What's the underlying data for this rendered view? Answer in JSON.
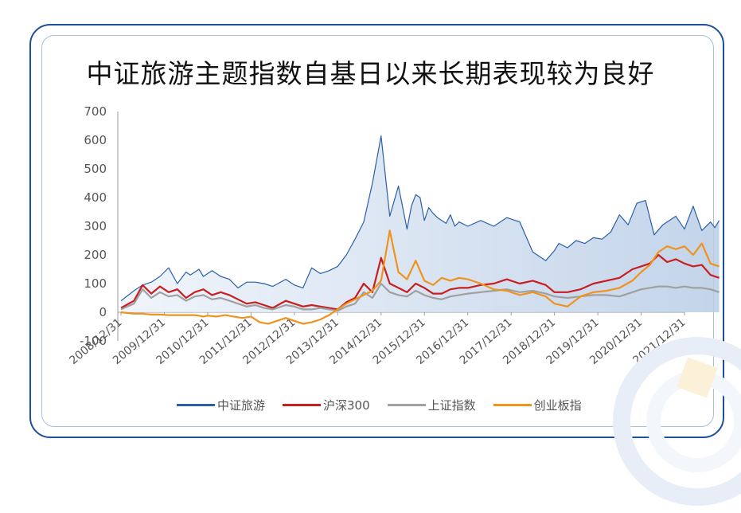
{
  "title": "中证旅游主题指数自基日以来长期表现较为良好",
  "legend": [
    "中证旅游",
    "沪深300",
    "上证指数",
    "创业板指"
  ],
  "chart_data": {
    "type": "line",
    "title": "中证旅游主题指数自基日以来长期表现较为良好",
    "xlabel": "",
    "ylabel": "",
    "ylim": [
      -100,
      700
    ],
    "yticks": [
      -100,
      0,
      100,
      200,
      300,
      400,
      500,
      600,
      700
    ],
    "categories": [
      "2008/12/31",
      "2009/12/31",
      "2010/12/31",
      "2011/12/31",
      "2012/12/31",
      "2013/12/31",
      "2014/12/31",
      "2015/12/31",
      "2016/12/31",
      "2017/12/31",
      "2018/12/31",
      "2019/12/31",
      "2020/12/31",
      "2021/12/31"
    ],
    "grid": false,
    "legend_position": "bottom",
    "series": [
      {
        "name": "中证旅游",
        "color": "#2a5fa8",
        "fill": true,
        "x": [
          0,
          0.3,
          0.5,
          0.7,
          0.9,
          1.1,
          1.3,
          1.5,
          1.6,
          1.8,
          1.9,
          2.1,
          2.3,
          2.5,
          2.7,
          2.9,
          3.1,
          3.3,
          3.5,
          3.8,
          4.0,
          4.2,
          4.4,
          4.6,
          4.8,
          5.0,
          5.2,
          5.4,
          5.6,
          5.8,
          6.0,
          6.2,
          6.4,
          6.6,
          6.7,
          6.8,
          6.9,
          7.0,
          7.1,
          7.2,
          7.3,
          7.4,
          7.5,
          7.6,
          7.7,
          7.8,
          8.0,
          8.3,
          8.6,
          8.9,
          9.2,
          9.5,
          9.8,
          10.0,
          10.1,
          10.3,
          10.5,
          10.7,
          10.9,
          11.1,
          11.3,
          11.5,
          11.7,
          11.9,
          12.1,
          12.3,
          12.5,
          12.6,
          12.8,
          13.0,
          13.2,
          13.4,
          13.6,
          13.7,
          13.8
        ],
        "values": [
          40,
          75,
          95,
          105,
          125,
          155,
          100,
          140,
          130,
          150,
          125,
          145,
          125,
          115,
          85,
          105,
          105,
          100,
          90,
          115,
          95,
          85,
          155,
          135,
          145,
          160,
          200,
          255,
          315,
          450,
          615,
          335,
          440,
          290,
          370,
          410,
          400,
          320,
          365,
          345,
          330,
          320,
          310,
          340,
          300,
          315,
          300,
          320,
          300,
          330,
          315,
          210,
          180,
          215,
          240,
          225,
          250,
          240,
          260,
          255,
          280,
          340,
          305,
          380,
          390,
          270,
          305,
          315,
          335,
          290,
          370,
          285,
          315,
          295,
          320
        ]
      },
      {
        "name": "沪深300",
        "color": "#c81e1e",
        "fill": false,
        "x": [
          0,
          0.3,
          0.5,
          0.7,
          0.9,
          1.1,
          1.3,
          1.5,
          1.7,
          1.9,
          2.1,
          2.3,
          2.5,
          2.7,
          2.9,
          3.1,
          3.3,
          3.5,
          3.8,
          4.0,
          4.2,
          4.4,
          4.6,
          4.8,
          5.0,
          5.2,
          5.4,
          5.6,
          5.8,
          6.0,
          6.2,
          6.4,
          6.6,
          6.8,
          7.0,
          7.2,
          7.4,
          7.6,
          7.8,
          8.0,
          8.3,
          8.6,
          8.9,
          9.2,
          9.5,
          9.8,
          10.0,
          10.3,
          10.6,
          10.9,
          11.2,
          11.5,
          11.8,
          12.0,
          12.2,
          12.4,
          12.6,
          12.8,
          13.0,
          13.2,
          13.4,
          13.6,
          13.8
        ],
        "values": [
          15,
          40,
          95,
          65,
          90,
          70,
          80,
          50,
          70,
          80,
          60,
          70,
          60,
          45,
          30,
          35,
          25,
          15,
          40,
          30,
          20,
          25,
          20,
          15,
          10,
          35,
          50,
          100,
          70,
          190,
          100,
          85,
          70,
          100,
          85,
          65,
          65,
          80,
          85,
          85,
          95,
          100,
          115,
          100,
          110,
          95,
          70,
          70,
          80,
          100,
          110,
          120,
          150,
          160,
          170,
          200,
          175,
          185,
          170,
          160,
          165,
          130,
          120
        ]
      },
      {
        "name": "上证指数",
        "color": "#a0a0a0",
        "fill": false,
        "x": [
          0,
          0.3,
          0.5,
          0.7,
          0.9,
          1.1,
          1.3,
          1.5,
          1.7,
          1.9,
          2.1,
          2.3,
          2.5,
          2.7,
          2.9,
          3.1,
          3.3,
          3.5,
          3.8,
          4.0,
          4.2,
          4.4,
          4.6,
          4.8,
          5.0,
          5.2,
          5.4,
          5.6,
          5.8,
          6.0,
          6.2,
          6.4,
          6.6,
          6.8,
          7.0,
          7.2,
          7.4,
          7.6,
          7.8,
          8.0,
          8.3,
          8.6,
          8.9,
          9.2,
          9.5,
          9.8,
          10.0,
          10.3,
          10.6,
          10.9,
          11.2,
          11.5,
          11.8,
          12.0,
          12.2,
          12.4,
          12.6,
          12.8,
          13.0,
          13.2,
          13.4,
          13.6,
          13.8
        ],
        "values": [
          10,
          30,
          80,
          50,
          70,
          55,
          60,
          40,
          55,
          60,
          45,
          50,
          40,
          30,
          20,
          25,
          15,
          10,
          25,
          20,
          10,
          10,
          15,
          10,
          5,
          20,
          30,
          70,
          50,
          100,
          70,
          60,
          55,
          75,
          60,
          50,
          45,
          55,
          60,
          65,
          70,
          75,
          80,
          70,
          75,
          65,
          55,
          50,
          55,
          60,
          60,
          55,
          70,
          80,
          85,
          90,
          90,
          85,
          90,
          85,
          85,
          80,
          70
        ]
      },
      {
        "name": "创业板指",
        "color": "#f0921e",
        "fill": false,
        "x": [
          0,
          0.3,
          0.5,
          0.7,
          0.9,
          1.1,
          1.3,
          1.5,
          1.7,
          1.8,
          1.9,
          2.0,
          2.2,
          2.4,
          2.6,
          2.8,
          3.0,
          3.2,
          3.4,
          3.6,
          3.8,
          4.0,
          4.2,
          4.4,
          4.6,
          4.8,
          5.0,
          5.2,
          5.4,
          5.6,
          5.8,
          6.0,
          6.2,
          6.4,
          6.6,
          6.8,
          7.0,
          7.2,
          7.4,
          7.6,
          7.8,
          8.0,
          8.3,
          8.6,
          8.9,
          9.2,
          9.5,
          9.8,
          10.0,
          10.3,
          10.6,
          10.9,
          11.2,
          11.5,
          11.8,
          12.0,
          12.2,
          12.4,
          12.6,
          12.8,
          13.0,
          13.2,
          13.4,
          13.6,
          13.8
        ],
        "values": [
          0,
          -5,
          -5,
          -8,
          -8,
          -10,
          -10,
          -10,
          -10,
          -12,
          -15,
          -12,
          -15,
          -10,
          -15,
          -20,
          -15,
          -35,
          -40,
          -30,
          -20,
          -30,
          -40,
          -35,
          -25,
          -10,
          10,
          30,
          45,
          60,
          75,
          110,
          285,
          140,
          115,
          180,
          110,
          95,
          120,
          110,
          120,
          115,
          100,
          80,
          75,
          60,
          70,
          55,
          30,
          20,
          55,
          70,
          75,
          85,
          110,
          140,
          165,
          210,
          230,
          220,
          230,
          200,
          240,
          170,
          160
        ]
      }
    ]
  }
}
